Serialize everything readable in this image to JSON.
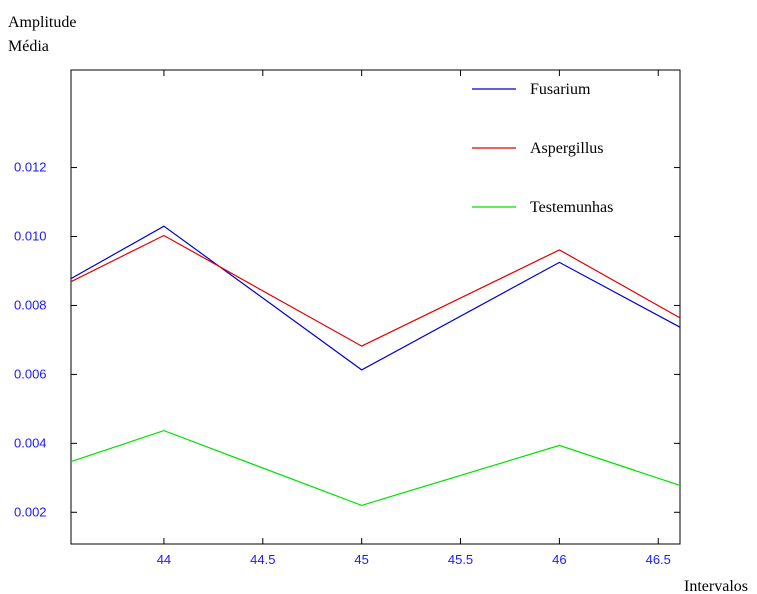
{
  "chart_data": {
    "type": "line",
    "title": "",
    "ylabel_lines": [
      "Amplitude",
      "Média"
    ],
    "xlabel": "Intervalos",
    "xlim": [
      43.53,
      46.61
    ],
    "ylim": [
      0.00108,
      0.01483
    ],
    "x_ticks": [
      {
        "value": 44,
        "label": "44"
      },
      {
        "value": 44.5,
        "label": "44.5"
      },
      {
        "value": 45,
        "label": "45"
      },
      {
        "value": 45.5,
        "label": "45.5"
      },
      {
        "value": 46,
        "label": "46"
      },
      {
        "value": 46.5,
        "label": "46.5"
      }
    ],
    "y_ticks": [
      {
        "value": 0.002,
        "label": "0.002"
      },
      {
        "value": 0.004,
        "label": "0.004"
      },
      {
        "value": 0.006,
        "label": "0.006"
      },
      {
        "value": 0.008,
        "label": "0.008"
      },
      {
        "value": 0.01,
        "label": "0.010"
      },
      {
        "value": 0.012,
        "label": "0.012"
      }
    ],
    "x": [
      43.53,
      44,
      45,
      46,
      46.61
    ],
    "series": [
      {
        "name": "Fusarium",
        "color": "#0000cc",
        "values": [
          0.00878,
          0.0103,
          0.00613,
          0.00925,
          0.00737
        ]
      },
      {
        "name": "Aspergillus",
        "color": "#e00000",
        "values": [
          0.00869,
          0.01003,
          0.00682,
          0.00961,
          0.00764
        ]
      },
      {
        "name": "Testemunhas",
        "color": "#00e000",
        "values": [
          0.00347,
          0.00437,
          0.0022,
          0.00394,
          0.00278
        ]
      }
    ],
    "grid": false,
    "legend_position": "top-right",
    "tick_color": "#1a1aff",
    "axis_color": "#000000"
  }
}
